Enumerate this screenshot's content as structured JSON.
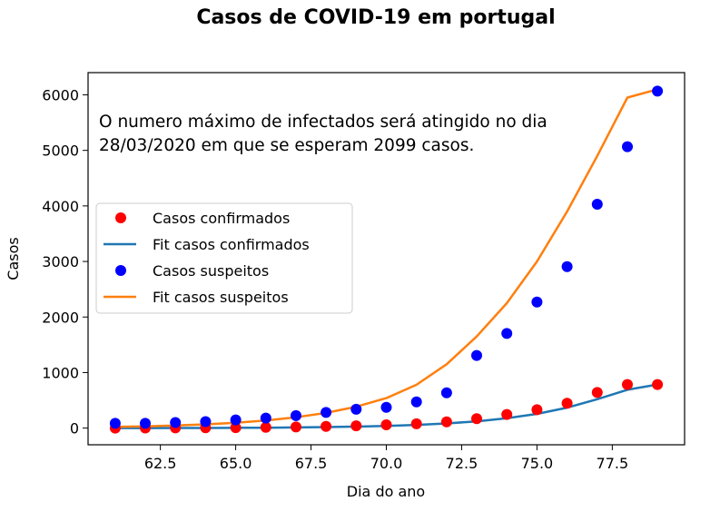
{
  "chart_data": {
    "type": "scatter",
    "title": "Casos de COVID-19 em portugal",
    "xlabel": "Dia do ano",
    "ylabel": "Casos",
    "xlim": [
      60.1,
      79.9
    ],
    "ylim": [
      -300,
      6400
    ],
    "xticks": [
      62.5,
      65.0,
      67.5,
      70.0,
      72.5,
      75.0,
      77.5
    ],
    "xtick_labels": [
      "62.5",
      "65.0",
      "67.5",
      "70.0",
      "72.5",
      "75.0",
      "77.5"
    ],
    "yticks": [
      0,
      1000,
      2000,
      3000,
      4000,
      5000,
      6000
    ],
    "ytick_labels": [
      "0",
      "1000",
      "2000",
      "3000",
      "4000",
      "5000",
      "6000"
    ],
    "annotation": [
      "O numero máximo de infectados será atingido no dia",
      "28/03/2020 em que se esperam 2099 casos."
    ],
    "legend_position": "center-left",
    "x": [
      61,
      62,
      63,
      64,
      65,
      66,
      67,
      68,
      69,
      70,
      71,
      72,
      73,
      74,
      75,
      76,
      77,
      78,
      79
    ],
    "series": [
      {
        "name": "Casos confirmados",
        "kind": "scatter",
        "color": "#ff0000",
        "values": [
          0,
          2,
          4,
          6,
          9,
          13,
          21,
          30,
          41,
          59,
          78,
          112,
          169,
          245,
          331,
          448,
          642,
          785,
          785
        ]
      },
      {
        "name": "Fit casos confirmados",
        "kind": "line",
        "color": "#1f77b4",
        "values": [
          0,
          1,
          2,
          3,
          5,
          8,
          12,
          18,
          27,
          40,
          58,
          84,
          122,
          178,
          256,
          368,
          520,
          690,
          785
        ]
      },
      {
        "name": "Casos suspeitos",
        "kind": "scatter",
        "color": "#0000ff",
        "values": [
          85,
          85,
          101,
          117,
          147,
          181,
          224,
          281,
          339,
          375,
          471,
          637,
          1308,
          1704,
          2271,
          2908,
          4030,
          5067,
          6067
        ]
      },
      {
        "name": "Fit casos suspeitos",
        "kind": "line",
        "color": "#ff7f0e",
        "values": [
          22,
          32,
          46,
          67,
          96,
          138,
          195,
          273,
          385,
          540,
          780,
          1150,
          1650,
          2250,
          3000,
          3900,
          4900,
          5950,
          6100
        ]
      }
    ]
  }
}
